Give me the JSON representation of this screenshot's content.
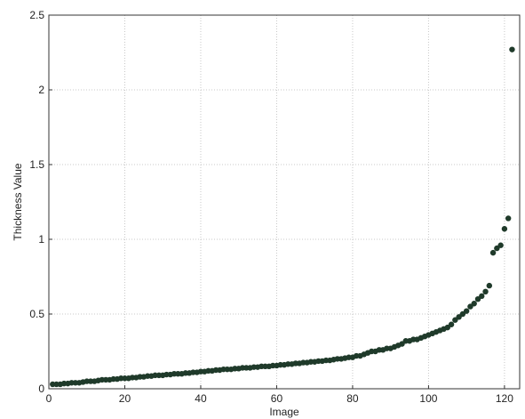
{
  "chart_data": {
    "type": "scatter",
    "title": "",
    "xlabel": "Image",
    "ylabel": "Thickness Value",
    "xlim": [
      0,
      124
    ],
    "ylim": [
      0,
      2.5
    ],
    "xticks": [
      0,
      20,
      40,
      60,
      80,
      100,
      120
    ],
    "yticks": [
      0,
      0.5,
      1,
      1.5,
      2,
      2.5
    ],
    "ytick_labels": [
      "0",
      "0.5",
      "1",
      "1.5",
      "2",
      "2.5"
    ],
    "grid": true,
    "marker_color": "#1f3a2a",
    "x": [
      1,
      2,
      3,
      4,
      5,
      6,
      7,
      8,
      9,
      10,
      11,
      12,
      13,
      14,
      15,
      16,
      17,
      18,
      19,
      20,
      21,
      22,
      23,
      24,
      25,
      26,
      27,
      28,
      29,
      30,
      31,
      32,
      33,
      34,
      35,
      36,
      37,
      38,
      39,
      40,
      41,
      42,
      43,
      44,
      45,
      46,
      47,
      48,
      49,
      50,
      51,
      52,
      53,
      54,
      55,
      56,
      57,
      58,
      59,
      60,
      61,
      62,
      63,
      64,
      65,
      66,
      67,
      68,
      69,
      70,
      71,
      72,
      73,
      74,
      75,
      76,
      77,
      78,
      79,
      80,
      81,
      82,
      83,
      84,
      85,
      86,
      87,
      88,
      89,
      90,
      91,
      92,
      93,
      94,
      95,
      96,
      97,
      98,
      99,
      100,
      101,
      102,
      103,
      104,
      105,
      106,
      107,
      108,
      109,
      110,
      111,
      112,
      113,
      114,
      115,
      116,
      117,
      118,
      119,
      120,
      121,
      122
    ],
    "y": [
      0.03,
      0.03,
      0.03,
      0.035,
      0.035,
      0.04,
      0.04,
      0.04,
      0.045,
      0.05,
      0.05,
      0.05,
      0.055,
      0.06,
      0.06,
      0.06,
      0.065,
      0.065,
      0.07,
      0.07,
      0.07,
      0.075,
      0.075,
      0.08,
      0.08,
      0.085,
      0.085,
      0.09,
      0.09,
      0.09,
      0.095,
      0.095,
      0.1,
      0.1,
      0.1,
      0.105,
      0.105,
      0.11,
      0.11,
      0.115,
      0.115,
      0.12,
      0.12,
      0.125,
      0.125,
      0.13,
      0.13,
      0.13,
      0.135,
      0.135,
      0.14,
      0.14,
      0.14,
      0.145,
      0.145,
      0.15,
      0.15,
      0.15,
      0.155,
      0.155,
      0.16,
      0.16,
      0.165,
      0.165,
      0.17,
      0.17,
      0.175,
      0.175,
      0.18,
      0.18,
      0.185,
      0.185,
      0.19,
      0.19,
      0.195,
      0.2,
      0.2,
      0.205,
      0.21,
      0.21,
      0.22,
      0.22,
      0.23,
      0.24,
      0.25,
      0.25,
      0.26,
      0.26,
      0.27,
      0.27,
      0.28,
      0.29,
      0.3,
      0.32,
      0.32,
      0.33,
      0.33,
      0.34,
      0.35,
      0.36,
      0.37,
      0.38,
      0.39,
      0.4,
      0.41,
      0.43,
      0.46,
      0.48,
      0.5,
      0.52,
      0.55,
      0.57,
      0.6,
      0.62,
      0.65,
      0.69,
      0.91,
      0.94,
      0.96,
      1.07,
      1.14,
      2.27
    ]
  }
}
